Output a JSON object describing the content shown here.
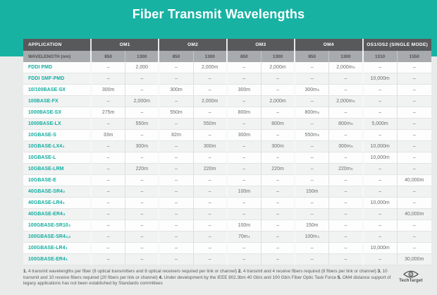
{
  "colors": {
    "teal": "#18b2a3",
    "header_dark": "#58595b",
    "header_gray": "#a8abad",
    "app_text": "#0fae9f",
    "page_bg": "#e9ebea"
  },
  "logo": {
    "text": "TechTarget"
  },
  "chart_data": {
    "type": "table",
    "title": "Fiber Transmit Wavelengths",
    "column_groups": [
      "APPLICATION",
      "OM1",
      "OM2",
      "OM3",
      "OM4",
      "OS1/OS2 (SINGLE MODE)"
    ],
    "wavelength_header": "WAVELENGTH (nm)",
    "wavelengths": [
      "850",
      "1300",
      "850",
      "1300",
      "850",
      "1300",
      "850",
      "1300",
      "1310",
      "1550"
    ],
    "rows": [
      {
        "application": "FDDI PMD",
        "values": [
          "–",
          "2,000",
          "–",
          "2,000m",
          "–",
          "2,000m",
          "–",
          "2,000m^5",
          "–",
          "–"
        ]
      },
      {
        "application": "FDDI SMF-PMD",
        "values": [
          "–",
          "–",
          "–",
          "–",
          "–",
          "–",
          "–",
          "–",
          "10,000m",
          "–"
        ]
      },
      {
        "application": "10/100BASE-SX",
        "values": [
          "300m",
          "–",
          "300m",
          "–",
          "300m",
          "–",
          "300m^5",
          "–",
          "–",
          "–"
        ]
      },
      {
        "application": "100BASE-FX",
        "values": [
          "–",
          "2,000m",
          "–",
          "2,000m",
          "–",
          "2,000m",
          "–",
          "2,000m^5",
          "–",
          "–"
        ]
      },
      {
        "application": "1000BASE-SX",
        "values": [
          "275m",
          "–",
          "550m",
          "–",
          "800m",
          "–",
          "800m^5",
          "–",
          "–",
          "–"
        ]
      },
      {
        "application": "1000BASE-LX",
        "values": [
          "–",
          "550m",
          "–",
          "550m",
          "–",
          "800m",
          "–",
          "800m^5",
          "5,000m",
          "–"
        ]
      },
      {
        "application": "10GBASE-S",
        "values": [
          "33m",
          "–",
          "82m",
          "–",
          "300m",
          "–",
          "550m^5",
          "–",
          "–",
          "–"
        ]
      },
      {
        "application": "10GBASE-LX4^1",
        "values": [
          "–",
          "300m",
          "–",
          "300m",
          "–",
          "300m",
          "–",
          "300m^5",
          "10,000m",
          "–"
        ]
      },
      {
        "application": "10GBASE-L",
        "values": [
          "–",
          "–",
          "–",
          "–",
          "–",
          "–",
          "–",
          "–",
          "10,000m",
          "–"
        ]
      },
      {
        "application": "10GBASE-LRM",
        "values": [
          "–",
          "220m",
          "–",
          "220m",
          "–",
          "220m",
          "–",
          "220m^5",
          "–",
          "–"
        ]
      },
      {
        "application": "10GBASE-E",
        "values": [
          "–",
          "–",
          "–",
          "–",
          "–",
          "–",
          "–",
          "–",
          "–",
          "40,000m"
        ]
      },
      {
        "application": "40GBASE-SR4^2",
        "values": [
          "–",
          "–",
          "–",
          "–",
          "100m",
          "–",
          "150m",
          "–",
          "–",
          "–"
        ]
      },
      {
        "application": "40GBASE-LR4^1",
        "values": [
          "–",
          "–",
          "–",
          "–",
          "–",
          "–",
          "–",
          "–",
          "10,000m",
          "–"
        ]
      },
      {
        "application": "40GBASE-ER4^4",
        "values": [
          "–",
          "–",
          "–",
          "–",
          "–",
          "–",
          "–",
          "–",
          "–",
          "40,000m"
        ]
      },
      {
        "application": "100GBASE-SR10^3",
        "values": [
          "–",
          "–",
          "–",
          "–",
          "100m",
          "–",
          "150m",
          "–",
          "–",
          "–"
        ]
      },
      {
        "application": "100GBASE-SR4^2,4",
        "values": [
          "–",
          "–",
          "–",
          "–",
          "70m^4",
          "–",
          "100m^4",
          "–",
          "–",
          "–"
        ]
      },
      {
        "application": "100GBASE-LR4^1",
        "values": [
          "–",
          "–",
          "–",
          "–",
          "–",
          "–",
          "–",
          "–",
          "10,000m",
          "–"
        ]
      },
      {
        "application": "100GBASE-ER4^1",
        "values": [
          "–",
          "–",
          "–",
          "–",
          "–",
          "–",
          "–",
          "–",
          "–",
          "30,000m"
        ]
      }
    ],
    "footnotes": [
      {
        "num": "1.",
        "text": "4 transmit wavelengths per fiber (8 optical transmitters and 8 optical receivers required per link or channel)"
      },
      {
        "num": "2.",
        "text": "4 transmit and 4 receive fibers required (8 fibers per link or channel)"
      },
      {
        "num": "3.",
        "text": "10 transmit and 10 receive fibers required (20 fibers per link or channel)"
      },
      {
        "num": "4.",
        "text": "Under development by the IEEE 802.3bm 40 Gb/s and 100 Gb/s Fiber Optic Task Force"
      },
      {
        "num": "5.",
        "text": "OM4 distance support of legacy applications has not been established by Standards committees"
      }
    ]
  }
}
